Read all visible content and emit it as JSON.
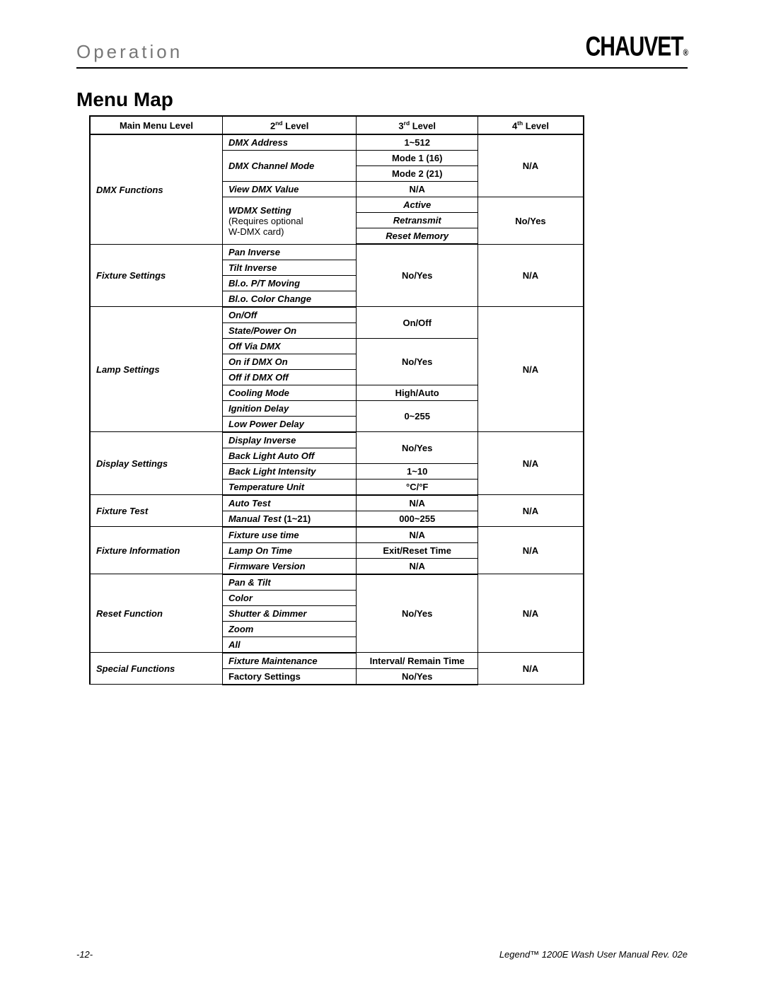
{
  "section": "Operation",
  "logo_text": "CHAUVET",
  "logo_reg": "®",
  "title": "Menu Map",
  "headers": {
    "c1": "Main Menu Level",
    "c2_pre": "2",
    "c2_sup": "nd",
    "c2_post": " Level",
    "c3_pre": "3",
    "c3_sup": "rd",
    "c3_post": " Level",
    "c4_pre": "4",
    "c4_sup": "th",
    "c4_post": " Level"
  },
  "dmx": {
    "main": "DMX Functions",
    "addr": "DMX Address",
    "addr_v": "1~512",
    "chmode": "DMX Channel Mode",
    "m1": "Mode 1 (16)",
    "m2": "Mode 2 (21)",
    "view": "View DMX Value",
    "view_v": "N/A",
    "wdmx": "WDMX Setting",
    "wdmx_note1": "(Requires optional",
    "wdmx_note2": "W-DMX card)",
    "active": "Active",
    "retrans": "Retransmit",
    "resetmem": "Reset Memory",
    "fourth1": "N/A",
    "fourth2": "No/Yes"
  },
  "fix": {
    "main": "Fixture Settings",
    "pan": "Pan Inverse",
    "tilt": "Tilt Inverse",
    "ptmove": "Bl.o. P/T Moving",
    "colchg": "Bl.o. Color Change",
    "third": "No/Yes",
    "fourth": "N/A"
  },
  "lamp": {
    "main": "Lamp Settings",
    "onoff": "On/Off",
    "state": "State/Power On",
    "offvia": "Off Via DMX",
    "onif": "On if DMX On",
    "offif": "Off if DMX Off",
    "cool": "Cooling Mode",
    "cool_v": "High/Auto",
    "ign": "Ignition Delay",
    "lowp": "Low Power Delay",
    "onoff_v": "On/Off",
    "noyes": "No/Yes",
    "delay_v": "0~255",
    "fourth": "N/A"
  },
  "disp": {
    "main": "Display Settings",
    "inv": "Display Inverse",
    "blauto": "Back Light Auto Off",
    "blint": "Back Light Intensity",
    "blint_v": "1~10",
    "temp": "Temperature Unit",
    "temp_v": "°C/°F",
    "noyes": "No/Yes",
    "fourth": "N/A"
  },
  "test": {
    "main": "Fixture Test",
    "auto": "Auto Test",
    "auto_v": "N/A",
    "man_b": "Manual Test",
    "man_rest": " (1~21)",
    "man_v": "000~255",
    "fourth": "N/A"
  },
  "info": {
    "main": "Fixture Information",
    "use": "Fixture use time",
    "use_v": "N/A",
    "lampon": "Lamp On Time",
    "lampon_v": "Exit/Reset Time",
    "fw": "Firmware Version",
    "fw_v": "N/A",
    "fourth": "N/A"
  },
  "reset": {
    "main": "Reset Function",
    "pt": "Pan & Tilt",
    "color": "Color",
    "sd": "Shutter & Dimmer",
    "zoom": "Zoom",
    "all": "All",
    "noyes": "No/Yes",
    "fourth": "N/A"
  },
  "spec": {
    "main": "Special Functions",
    "fm": "Fixture Maintenance",
    "fm_v": "Interval/ Remain Time",
    "fs": "Factory Settings",
    "fs_v": "No/Yes",
    "fourth": "N/A"
  },
  "footer": {
    "page": "-12-",
    "doc": "Legend™ 1200E Wash User Manual Rev. 02e"
  },
  "col_widths": {
    "c1": "188px",
    "c2": "190px",
    "c3": "172px",
    "c4": "150px"
  }
}
